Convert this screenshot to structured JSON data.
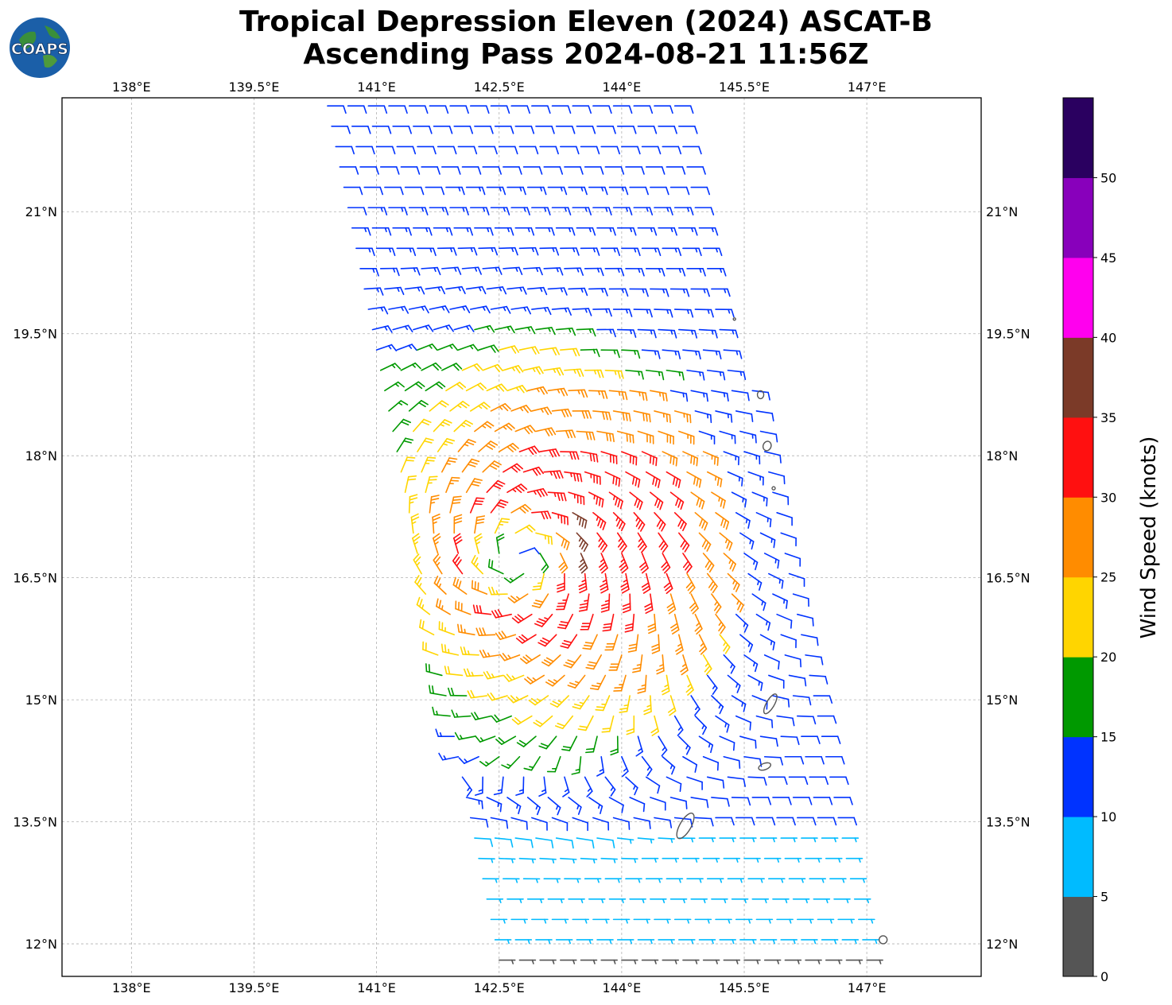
{
  "title": {
    "line1": "Tropical Depression Eleven (2024) ASCAT-B",
    "line2": "Ascending Pass 2024-08-21 11:56Z"
  },
  "logo": {
    "text": "COAPS",
    "icon": "coaps-globe-logo"
  },
  "chart_data": {
    "type": "wind-barb-map",
    "lon_range": [
      137.15,
      148.4
    ],
    "lat_range": [
      11.6,
      22.4
    ],
    "lon_ticks": [
      "138°E",
      "139.5°E",
      "141°E",
      "142.5°E",
      "144°E",
      "145.5°E",
      "147°E"
    ],
    "lon_tick_values": [
      138,
      139.5,
      141,
      142.5,
      144,
      145.5,
      147
    ],
    "lat_ticks": [
      "12°N",
      "13.5°N",
      "15°N",
      "16.5°N",
      "18°N",
      "19.5°N",
      "21°N"
    ],
    "lat_tick_values": [
      12,
      13.5,
      15,
      16.5,
      18,
      19.5,
      21
    ],
    "grid": true,
    "center": {
      "lon": 142.75,
      "lat": 16.75
    },
    "max_wind_kt": 35
  },
  "colorbar": {
    "label": "Wind Speed (knots)",
    "ticks": [
      "0",
      "5",
      "10",
      "15",
      "20",
      "25",
      "30",
      "35",
      "40",
      "45",
      "50"
    ],
    "bins": [
      0,
      5,
      10,
      15,
      20,
      25,
      30,
      35,
      40,
      45,
      50,
      55
    ],
    "colors": [
      "#555555",
      "#00bbff",
      "#0033ff",
      "#009900",
      "#ffd500",
      "#ff8c00",
      "#ff1010",
      "#7b3a28",
      "#ff00ee",
      "#8800bb",
      "#2a0060"
    ]
  },
  "colors": {
    "coast": "#555555",
    "grid": "#b0b0b0"
  }
}
